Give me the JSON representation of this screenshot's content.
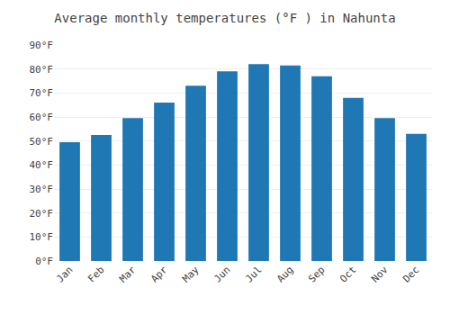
{
  "chart_data": {
    "type": "bar",
    "title": "Average monthly temperatures (°F ) in Nahunta",
    "categories": [
      "Jan",
      "Feb",
      "Mar",
      "Apr",
      "May",
      "Jun",
      "Jul",
      "Aug",
      "Sep",
      "Oct",
      "Nov",
      "Dec"
    ],
    "values": [
      49.5,
      52.5,
      59.5,
      66.0,
      73.0,
      79.0,
      82.0,
      81.5,
      77.0,
      68.0,
      59.5,
      53.0
    ],
    "ylim": [
      0,
      90
    ],
    "yticks": [
      {
        "value": 0,
        "label": "0°F"
      },
      {
        "value": 10,
        "label": "10°F"
      },
      {
        "value": 20,
        "label": "20°F"
      },
      {
        "value": 30,
        "label": "30°F"
      },
      {
        "value": 40,
        "label": "40°F"
      },
      {
        "value": 50,
        "label": "50°F"
      },
      {
        "value": 60,
        "label": "60°F"
      },
      {
        "value": 70,
        "label": "70°F"
      },
      {
        "value": 80,
        "label": "80°F"
      },
      {
        "value": 90,
        "label": "90°F"
      }
    ],
    "grid": true
  }
}
